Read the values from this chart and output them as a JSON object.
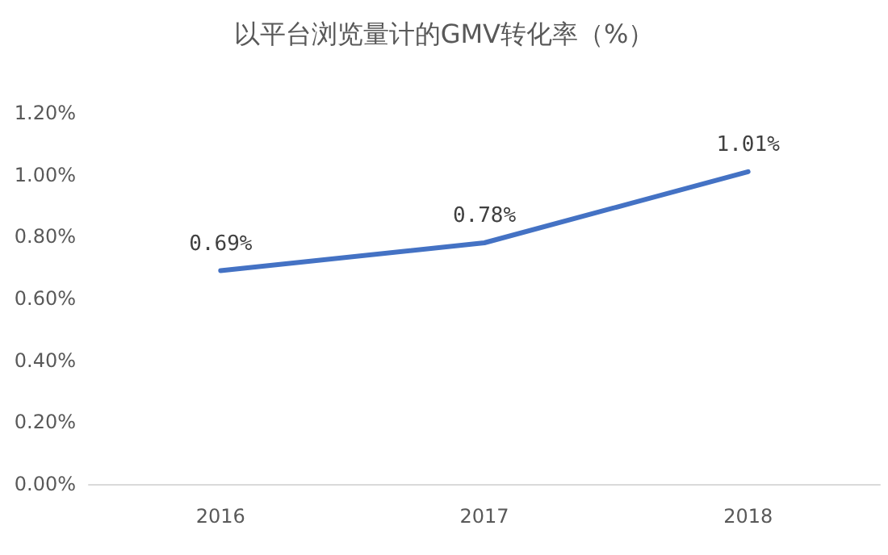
{
  "chart_data": {
    "type": "line",
    "title": "以平台浏览量计的GMV转化率（%）",
    "categories": [
      "2016",
      "2017",
      "2018"
    ],
    "series": [
      {
        "color": "#4472c4",
        "values": [
          0.69,
          0.78,
          1.01
        ],
        "value_labels": [
          "0.69%",
          "0.78%",
          "1.01%"
        ]
      }
    ],
    "ylim": [
      0,
      1.2
    ],
    "yticks": [
      {
        "value": 0,
        "label": "0.00%"
      },
      {
        "value": 0.2,
        "label": "0.20%"
      },
      {
        "value": 0.4,
        "label": "0.40%"
      },
      {
        "value": 0.6,
        "label": "0.60%"
      },
      {
        "value": 0.8,
        "label": "0.80%"
      },
      {
        "value": 1.0,
        "label": "1.00%"
      },
      {
        "value": 1.2,
        "label": "1.20%"
      }
    ],
    "grid": false,
    "marker": "none",
    "line_style": "solid"
  }
}
